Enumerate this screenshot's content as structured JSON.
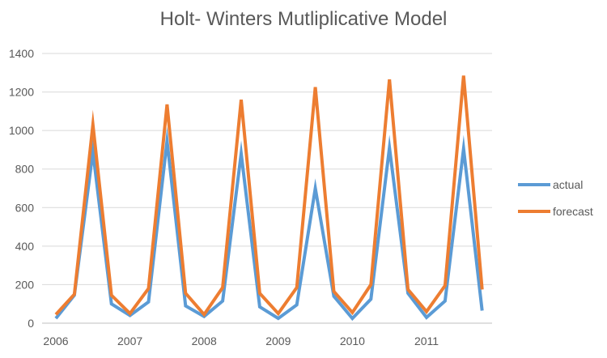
{
  "chart_data": {
    "type": "line",
    "title": "Holt- Winters Mutliplicative Model",
    "xlabel": "",
    "ylabel": "",
    "ylim": [
      0,
      1400
    ],
    "yticks": [
      0,
      200,
      400,
      600,
      800,
      1000,
      1200,
      1400
    ],
    "year_labels": [
      "2006",
      "2007",
      "2008",
      "2009",
      "2010",
      "2011"
    ],
    "grid": true,
    "legend": "right",
    "series": [
      {
        "name": "actual",
        "color": "#5B9BD5",
        "values": [
          25,
          145,
          890,
          100,
          40,
          110,
          945,
          90,
          35,
          115,
          880,
          85,
          25,
          95,
          700,
          140,
          25,
          125,
          910,
          155,
          30,
          115,
          905,
          65
        ]
      },
      {
        "name": "forecast",
        "color": "#ED7D31",
        "values": [
          45,
          150,
          1030,
          145,
          50,
          180,
          1135,
          155,
          45,
          185,
          1160,
          155,
          50,
          185,
          1225,
          165,
          55,
          200,
          1265,
          175,
          60,
          195,
          1285,
          175
        ]
      }
    ]
  }
}
